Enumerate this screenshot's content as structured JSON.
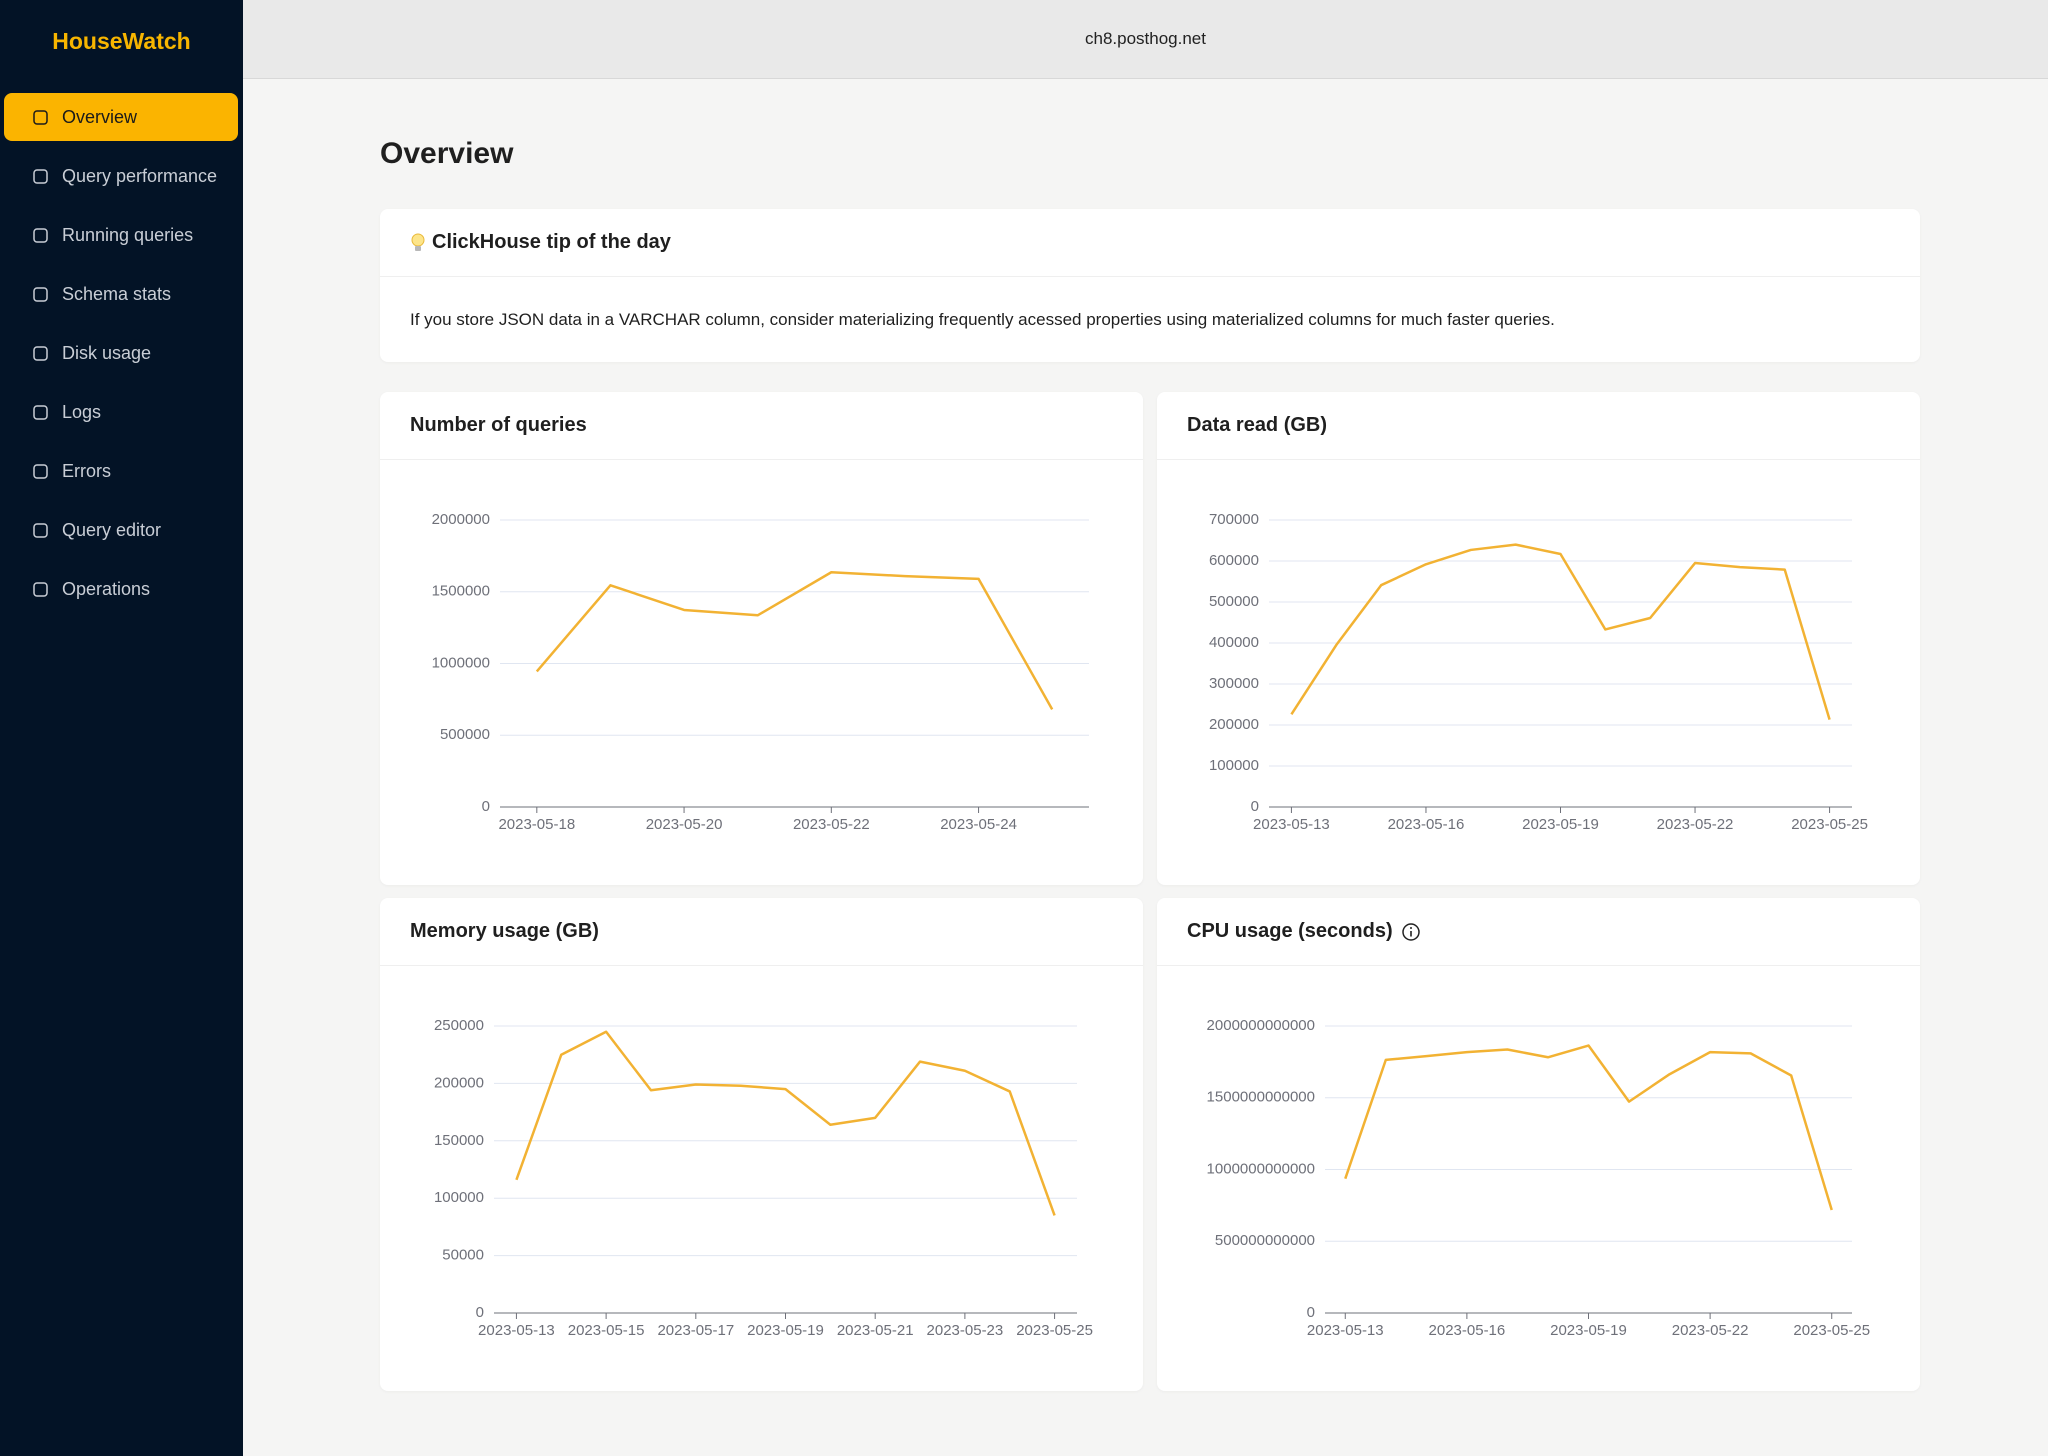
{
  "sidebar": {
    "logo": "HouseWatch",
    "items": [
      "Overview",
      "Query performance",
      "Running queries",
      "Schema stats",
      "Disk usage",
      "Logs",
      "Errors",
      "Query editor",
      "Operations"
    ]
  },
  "header": {
    "host": "ch8.posthog.net"
  },
  "page_title": "Overview",
  "tip": {
    "title": "ClickHouse tip of the day",
    "text": "If you store JSON data in a VARCHAR column, consider materializing frequently acessed properties using materialized columns for much faster queries."
  },
  "chart_data": [
    {
      "type": "line",
      "title": "Number of queries",
      "color": "#f2b233",
      "grid": true,
      "categories": [
        "2023-05-18",
        null,
        "2023-05-20",
        null,
        "2023-05-22",
        null,
        "2023-05-24",
        null
      ],
      "values": [
        945000,
        1545000,
        1373000,
        1336000,
        1636000,
        1609000,
        1590000,
        680000
      ],
      "ylim": [
        0,
        2000000
      ],
      "yticks": [
        0,
        500000,
        1000000,
        1500000,
        2000000
      ]
    },
    {
      "type": "line",
      "title": "Data read (GB)",
      "color": "#f2b233",
      "grid": true,
      "categories": [
        "2023-05-13",
        null,
        null,
        "2023-05-16",
        null,
        null,
        "2023-05-19",
        null,
        null,
        "2023-05-22",
        null,
        null,
        "2023-05-25"
      ],
      "values": [
        226000,
        395000,
        541000,
        592000,
        627000,
        640000,
        617000,
        433000,
        461000,
        595000,
        585000,
        579000,
        213000
      ],
      "ylim": [
        0,
        700000
      ],
      "yticks": [
        0,
        100000,
        200000,
        300000,
        400000,
        500000,
        600000,
        700000
      ]
    },
    {
      "type": "line",
      "title": "Memory usage (GB)",
      "color": "#f2b233",
      "grid": true,
      "categories": [
        "2023-05-13",
        null,
        "2023-05-15",
        null,
        "2023-05-17",
        null,
        "2023-05-19",
        null,
        "2023-05-21",
        null,
        "2023-05-23",
        null,
        "2023-05-25"
      ],
      "values": [
        116000,
        225000,
        245000,
        194000,
        199000,
        198000,
        195000,
        164000,
        170000,
        219000,
        211000,
        193000,
        85000
      ],
      "ylim": [
        0,
        250000
      ],
      "yticks": [
        0,
        50000,
        100000,
        150000,
        200000,
        250000
      ]
    },
    {
      "type": "line",
      "title": "CPU usage (seconds)",
      "color": "#f2b233",
      "grid": true,
      "categories": [
        "2023-05-13",
        null,
        null,
        "2023-05-16",
        null,
        null,
        "2023-05-19",
        null,
        null,
        "2023-05-22",
        null,
        null,
        "2023-05-25"
      ],
      "values": [
        936000000000,
        1764000000000,
        1790000000000,
        1818000000000,
        1836000000000,
        1782000000000,
        1864000000000,
        1473000000000,
        1664000000000,
        1818000000000,
        1809000000000,
        1655000000000,
        718000000000
      ],
      "ylim": [
        0,
        2000000000000
      ],
      "yticks": [
        0,
        500000000000,
        1000000000000,
        1500000000000,
        2000000000000
      ]
    }
  ]
}
